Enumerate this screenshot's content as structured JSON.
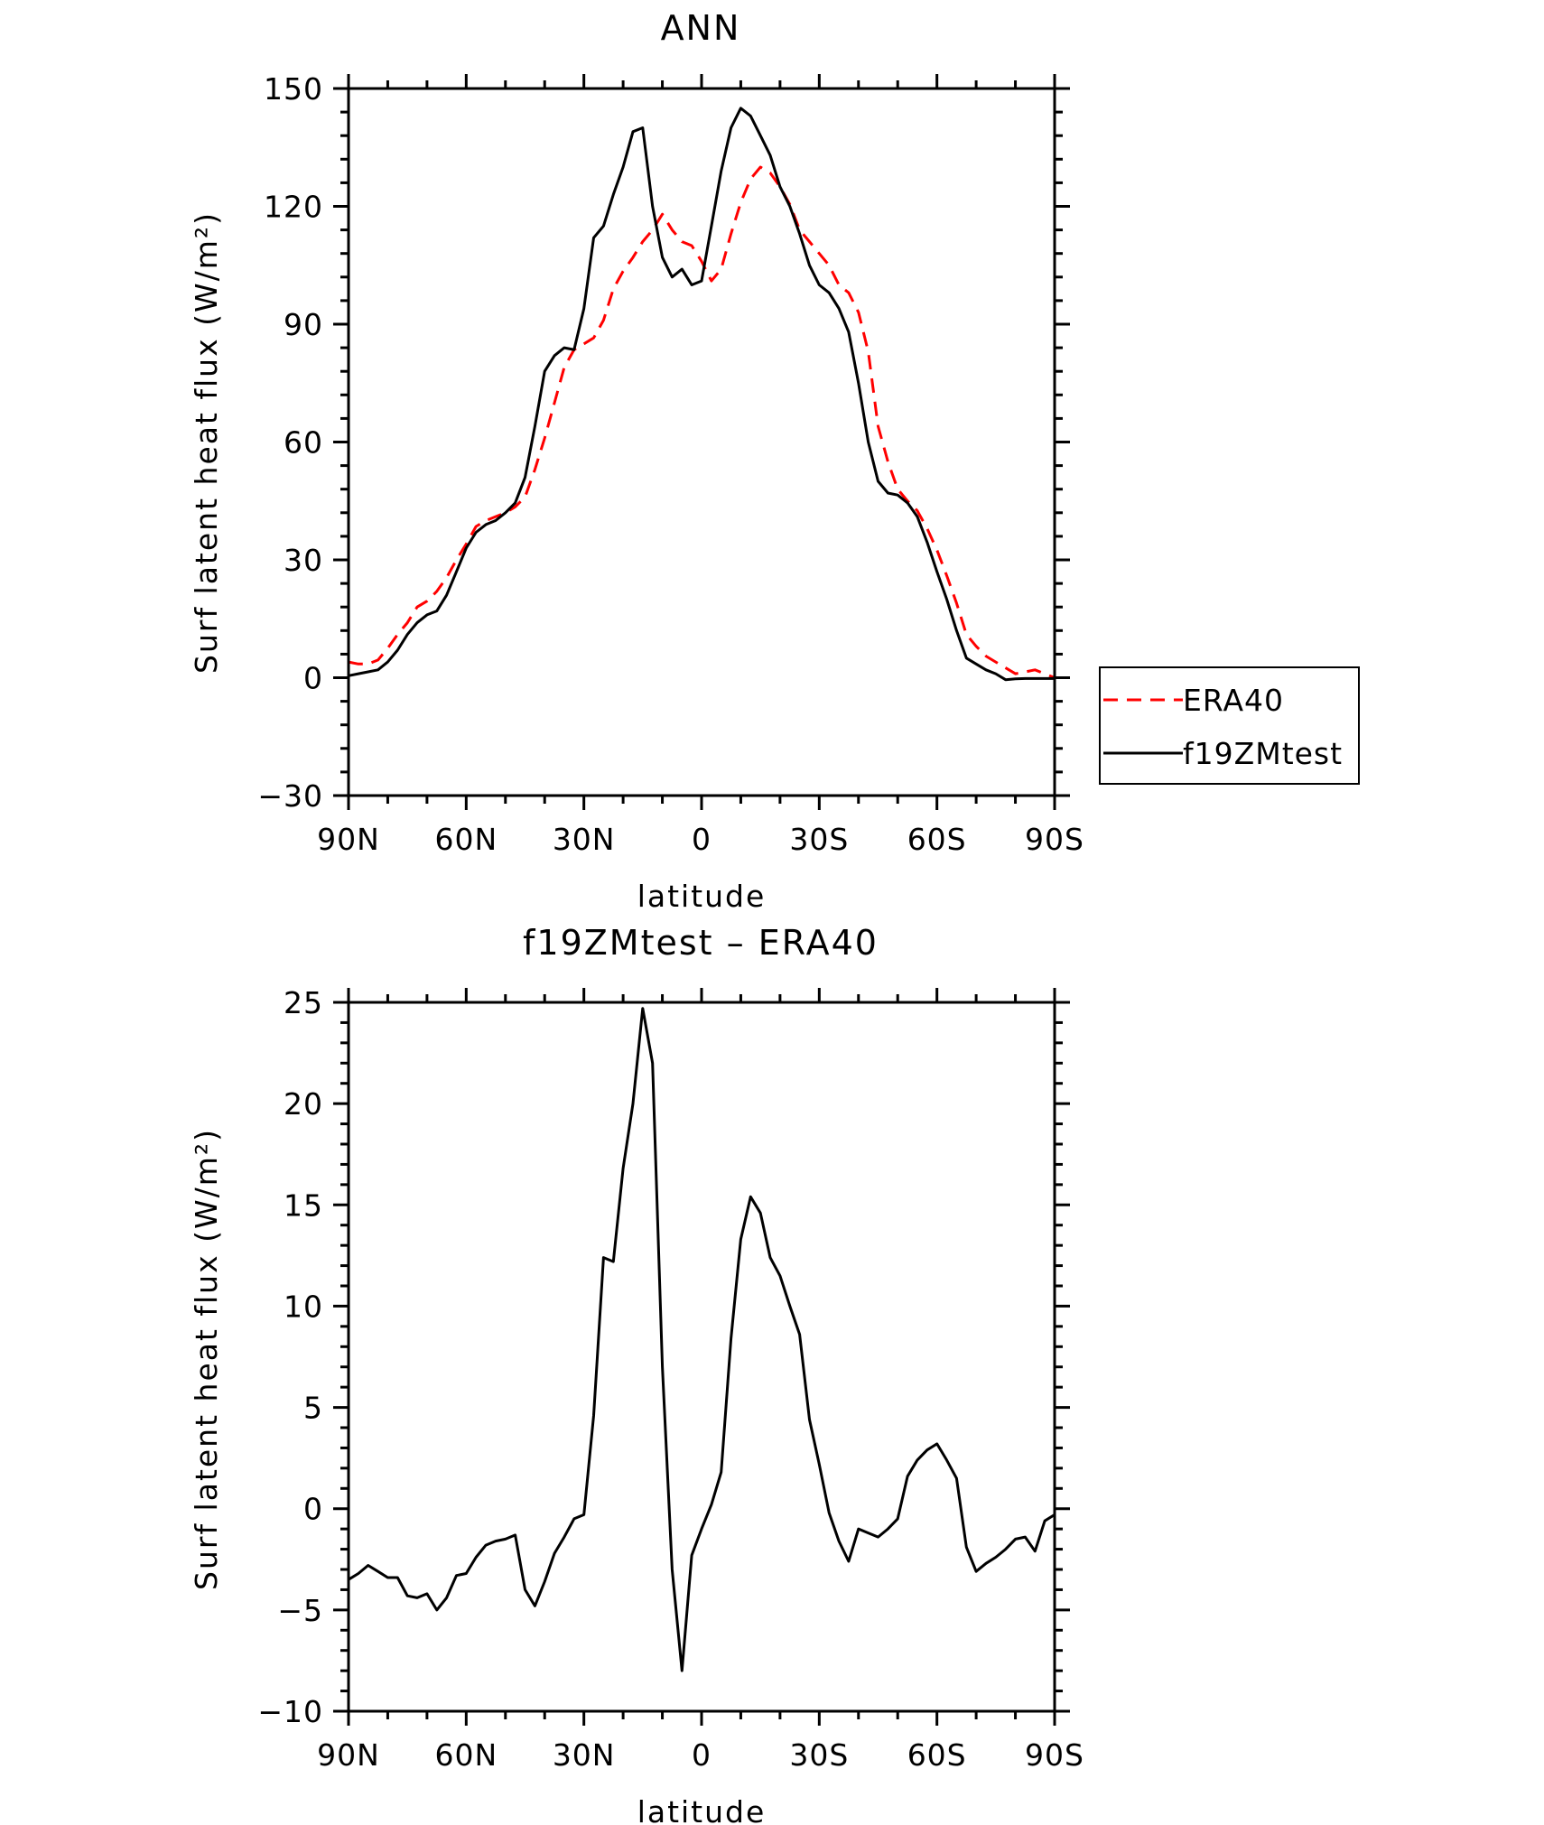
{
  "chart_data": [
    {
      "type": "line",
      "title": "ANN",
      "xlabel": "latitude",
      "ylabel": "Surf latent heat flux (W/m²)",
      "xlim": [
        90,
        -90
      ],
      "ylim": [
        -30,
        150
      ],
      "x_ticks": [
        {
          "value": 90,
          "label": "90N"
        },
        {
          "value": 60,
          "label": "60N"
        },
        {
          "value": 30,
          "label": "30N"
        },
        {
          "value": 0,
          "label": "0"
        },
        {
          "value": -30,
          "label": "30S"
        },
        {
          "value": -60,
          "label": "60S"
        },
        {
          "value": -90,
          "label": "90S"
        }
      ],
      "y_ticks": [
        {
          "value": 150,
          "label": "150"
        },
        {
          "value": 120,
          "label": "120"
        },
        {
          "value": 90,
          "label": "90"
        },
        {
          "value": 60,
          "label": "60"
        },
        {
          "value": 30,
          "label": "30"
        },
        {
          "value": 0,
          "label": "0"
        },
        {
          "value": -30,
          "label": "−30"
        }
      ],
      "legend": {
        "position": "right"
      },
      "series": [
        {
          "name": "ERA40",
          "color": "#ff0000",
          "style": "dashed",
          "x": [
            90,
            87.5,
            85,
            82.5,
            80,
            77.5,
            75,
            72.5,
            70,
            67.5,
            65,
            62.5,
            60,
            57.5,
            55,
            52.5,
            50,
            47.5,
            45,
            42.5,
            40,
            37.5,
            35,
            32.5,
            30,
            27.5,
            25,
            22.5,
            20,
            17.5,
            15,
            12.5,
            10,
            7.5,
            5,
            2.5,
            0,
            -2.5,
            -5,
            -7.5,
            -10,
            -12.5,
            -15,
            -17.5,
            -20,
            -22.5,
            -25,
            -27.5,
            -30,
            -32.5,
            -35,
            -37.5,
            -40,
            -42.5,
            -45,
            -47.5,
            -50,
            -52.5,
            -55,
            -57.5,
            -60,
            -62.5,
            -65,
            -67.5,
            -70,
            -72.5,
            -75,
            -77.5,
            -80,
            -82.5,
            -85,
            -87.5,
            -90
          ],
          "y": [
            4,
            3.5,
            3.5,
            4.5,
            7.5,
            11,
            14,
            18,
            19.5,
            22,
            25.5,
            30,
            34,
            38.5,
            40,
            41,
            42,
            43.5,
            46,
            53,
            61,
            70,
            79,
            83.5,
            85,
            86.5,
            91,
            99,
            103.5,
            107,
            111,
            114,
            118,
            114,
            111,
            110,
            106,
            101,
            104,
            113,
            121,
            127,
            130,
            128.5,
            125,
            120.5,
            114,
            111,
            108,
            105,
            100,
            98,
            93,
            83,
            64,
            55,
            48,
            45,
            42.5,
            38,
            32.5,
            26,
            19,
            11,
            8,
            5.5,
            4,
            2.5,
            1,
            1.5,
            2,
            1,
            0
          ]
        },
        {
          "name": "f19ZMtest",
          "color": "#000000",
          "style": "solid",
          "x": [
            90,
            87.5,
            85,
            82.5,
            80,
            77.5,
            75,
            72.5,
            70,
            67.5,
            65,
            62.5,
            60,
            57.5,
            55,
            52.5,
            50,
            47.5,
            45,
            42.5,
            40,
            37.5,
            35,
            32.5,
            30,
            27.5,
            25,
            22.5,
            20,
            17.5,
            15,
            12.5,
            10,
            7.5,
            5,
            2.5,
            0,
            -2.5,
            -5,
            -7.5,
            -10,
            -12.5,
            -15,
            -17.5,
            -20,
            -22.5,
            -25,
            -27.5,
            -30,
            -32.5,
            -35,
            -37.5,
            -40,
            -42.5,
            -45,
            -47.5,
            -50,
            -52.5,
            -55,
            -57.5,
            -60,
            -62.5,
            -65,
            -67.5,
            -70,
            -72.5,
            -75,
            -77.5,
            -80,
            -82.5,
            -85,
            -87.5,
            -90
          ],
          "y": [
            0.5,
            1,
            1.5,
            2,
            4,
            7,
            11,
            14,
            16,
            17,
            21,
            27,
            33,
            37,
            39,
            40,
            42,
            44.5,
            51,
            64,
            78,
            82,
            84,
            83.5,
            94,
            112,
            115,
            123,
            130,
            139,
            140,
            120,
            107,
            102,
            104,
            100,
            101,
            115,
            129,
            140,
            145,
            143,
            138,
            133,
            125,
            120,
            113,
            105,
            100,
            98,
            94,
            88,
            75,
            60,
            50,
            47,
            46.5,
            44.5,
            41,
            34.5,
            27,
            20,
            12,
            5,
            3.5,
            2,
            1,
            -0.5,
            -0.3,
            -0.2,
            -0.2,
            -0.2,
            -0.2
          ]
        }
      ]
    },
    {
      "type": "line",
      "title": "f19ZMtest – ERA40",
      "xlabel": "latitude",
      "ylabel": "Surf latent heat flux (W/m²)",
      "xlim": [
        90,
        -90
      ],
      "ylim": [
        -10,
        25
      ],
      "x_ticks": [
        {
          "value": 90,
          "label": "90N"
        },
        {
          "value": 60,
          "label": "60N"
        },
        {
          "value": 30,
          "label": "30N"
        },
        {
          "value": 0,
          "label": "0"
        },
        {
          "value": -30,
          "label": "30S"
        },
        {
          "value": -60,
          "label": "60S"
        },
        {
          "value": -90,
          "label": "90S"
        }
      ],
      "y_ticks": [
        {
          "value": 25,
          "label": "25"
        },
        {
          "value": 20,
          "label": "20"
        },
        {
          "value": 15,
          "label": "15"
        },
        {
          "value": 10,
          "label": "10"
        },
        {
          "value": 5,
          "label": "5"
        },
        {
          "value": 0,
          "label": "0"
        },
        {
          "value": -5,
          "label": "−5"
        },
        {
          "value": -10,
          "label": "−10"
        }
      ],
      "series": [
        {
          "color": "#000000",
          "style": "solid",
          "x": [
            90,
            87.5,
            85,
            82.5,
            80,
            77.5,
            75,
            72.5,
            70,
            67.5,
            65,
            62.5,
            60,
            57.5,
            55,
            52.5,
            50,
            47.5,
            45,
            42.5,
            40,
            37.5,
            35,
            32.5,
            30,
            27.5,
            25,
            22.5,
            20,
            17.5,
            15,
            12.5,
            10,
            7.5,
            5,
            2.5,
            0,
            -2.5,
            -5,
            -7.5,
            -10,
            -12.5,
            -15,
            -17.5,
            -20,
            -22.5,
            -25,
            -27.5,
            -30,
            -32.5,
            -35,
            -37.5,
            -40,
            -42.5,
            -45,
            -47.5,
            -50,
            -52.5,
            -55,
            -57.5,
            -60,
            -62.5,
            -65,
            -67.5,
            -70,
            -72.5,
            -75,
            -77.5,
            -80,
            -82.5,
            -85,
            -87.5,
            -90
          ],
          "y": [
            -3.5,
            -3.2,
            -2.8,
            -3.1,
            -3.4,
            -3.4,
            -4.3,
            -4.4,
            -4.2,
            -5,
            -4.4,
            -3.3,
            -3.2,
            -2.4,
            -1.8,
            -1.6,
            -1.5,
            -1.3,
            -4,
            -4.8,
            -3.6,
            -2.2,
            -1.4,
            -0.5,
            -0.3,
            4.6,
            12.4,
            12.2,
            16.8,
            20,
            24.7,
            22,
            7,
            -3,
            -8,
            -2.3,
            -1,
            0.2,
            1.8,
            8.4,
            13.3,
            15.4,
            14.6,
            12.4,
            11.5,
            10,
            8.6,
            4.4,
            2.2,
            -0.2,
            -1.6,
            -2.6,
            -1,
            -1.2,
            -1.4,
            -1,
            -0.5,
            1.6,
            2.4,
            2.9,
            3.2,
            2.4,
            1.5,
            -1.9,
            -3.1,
            -2.7,
            -2.4,
            -2,
            -1.5,
            -1.4,
            -2.1,
            -0.6,
            -0.3
          ]
        }
      ]
    }
  ]
}
